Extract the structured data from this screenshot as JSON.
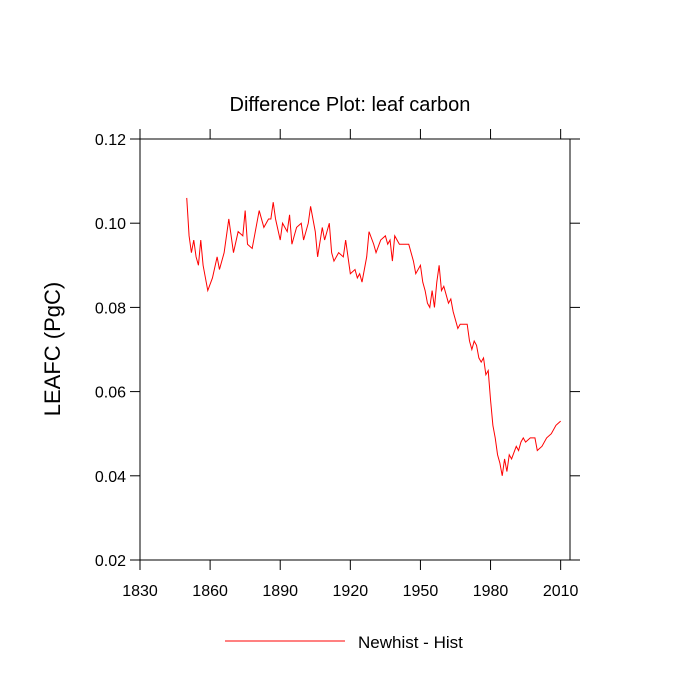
{
  "chart_data": {
    "type": "line",
    "title": "Difference Plot: leaf carbon",
    "y_label": "LEAFC  (PgC)",
    "x": [
      1850,
      1851,
      1852,
      1853,
      1854,
      1855,
      1856,
      1857,
      1859,
      1861,
      1863,
      1864,
      1866,
      1868,
      1869,
      1870,
      1872,
      1874,
      1875,
      1876,
      1878,
      1880,
      1881,
      1883,
      1885,
      1886,
      1887,
      1888,
      1890,
      1891,
      1893,
      1894,
      1895,
      1897,
      1899,
      1900,
      1902,
      1903,
      1905,
      1906,
      1908,
      1909,
      1911,
      1912,
      1913,
      1915,
      1917,
      1918,
      1920,
      1922,
      1923,
      1924,
      1925,
      1927,
      1928,
      1930,
      1931,
      1933,
      1935,
      1936,
      1937,
      1938,
      1939,
      1941,
      1943,
      1945,
      1947,
      1948,
      1950,
      1951,
      1952,
      1953,
      1954,
      1955,
      1956,
      1957,
      1958,
      1959,
      1960,
      1962,
      1963,
      1964,
      1965,
      1966,
      1967,
      1969,
      1970,
      1971,
      1972,
      1973,
      1974,
      1975,
      1976,
      1977,
      1978,
      1979,
      1980,
      1981,
      1982,
      1983,
      1984,
      1985,
      1986,
      1987,
      1988,
      1989,
      1991,
      1992,
      1993,
      1994,
      1995,
      1997,
      1999,
      2000,
      2002,
      2004,
      2006,
      2008,
      2010
    ],
    "series": [
      {
        "name": "Newhist - Hist",
        "color": "#ff0000",
        "values": [
          0.106,
          0.097,
          0.093,
          0.096,
          0.092,
          0.09,
          0.096,
          0.09,
          0.084,
          0.087,
          0.092,
          0.089,
          0.093,
          0.101,
          0.097,
          0.093,
          0.098,
          0.097,
          0.103,
          0.095,
          0.094,
          0.1,
          0.103,
          0.099,
          0.101,
          0.101,
          0.105,
          0.101,
          0.096,
          0.1,
          0.098,
          0.102,
          0.095,
          0.099,
          0.1,
          0.096,
          0.1,
          0.104,
          0.098,
          0.092,
          0.099,
          0.096,
          0.1,
          0.093,
          0.091,
          0.093,
          0.092,
          0.096,
          0.088,
          0.089,
          0.087,
          0.088,
          0.086,
          0.092,
          0.098,
          0.095,
          0.093,
          0.096,
          0.097,
          0.095,
          0.096,
          0.091,
          0.097,
          0.095,
          0.095,
          0.095,
          0.091,
          0.088,
          0.09,
          0.086,
          0.084,
          0.081,
          0.08,
          0.084,
          0.08,
          0.086,
          0.09,
          0.084,
          0.085,
          0.081,
          0.082,
          0.079,
          0.077,
          0.075,
          0.076,
          0.076,
          0.076,
          0.072,
          0.07,
          0.072,
          0.071,
          0.068,
          0.067,
          0.068,
          0.064,
          0.065,
          0.058,
          0.052,
          0.049,
          0.045,
          0.043,
          0.04,
          0.044,
          0.041,
          0.045,
          0.044,
          0.047,
          0.046,
          0.048,
          0.049,
          0.048,
          0.049,
          0.049,
          0.046,
          0.047,
          0.049,
          0.05,
          0.052,
          0.053
        ]
      }
    ],
    "xlim": [
      1830,
      2014
    ],
    "xticks": [
      1830,
      1860,
      1890,
      1920,
      1950,
      1980,
      2010
    ],
    "ylim": [
      0.02,
      0.12
    ],
    "yticks": [
      0.02,
      0.04,
      0.06,
      0.08,
      {
        "value": 0.1,
        "label": "0.10"
      },
      0.12
    ]
  }
}
